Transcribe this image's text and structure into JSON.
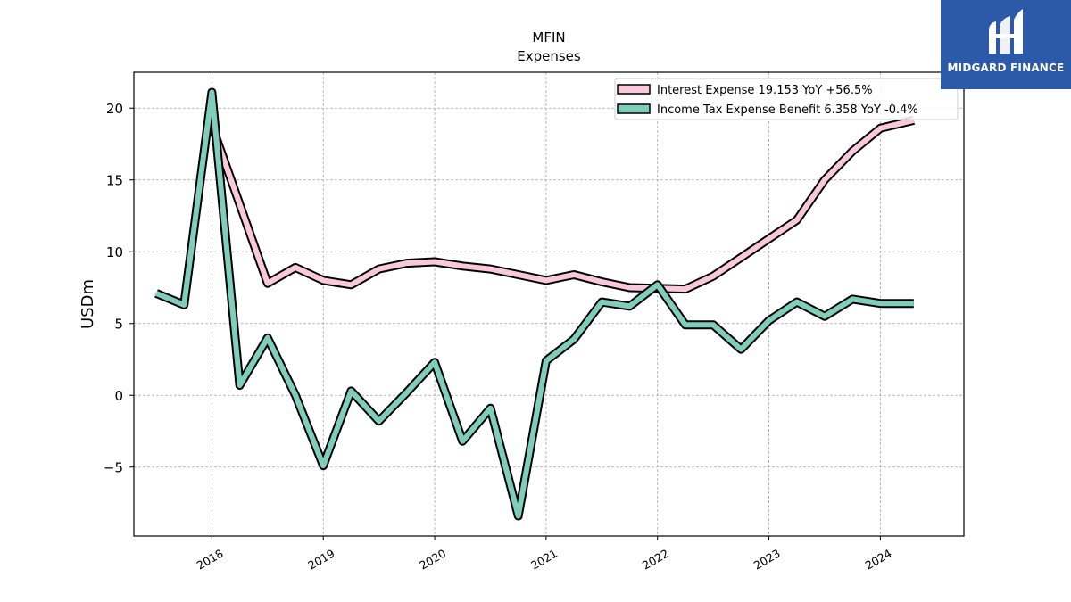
{
  "logo": {
    "text": "MIDGARD FINANCE",
    "background": "#2c5aa8",
    "icon": "midgard-logo-icon"
  },
  "chart_data": {
    "type": "line",
    "title": "MFIN",
    "subtitle": "Expenses",
    "ylabel": "USDm",
    "xlabel": "",
    "xlim": [
      2017.3,
      2024.75
    ],
    "ylim": [
      -9.8,
      22.5
    ],
    "yticks": [
      -5,
      0,
      5,
      10,
      15,
      20
    ],
    "ytick_labels": [
      "−5",
      "0",
      "5",
      "10",
      "15",
      "20"
    ],
    "xticks": [
      2018,
      2019,
      2020,
      2021,
      2022,
      2023,
      2024
    ],
    "xtick_labels": [
      "2018",
      "2019",
      "2020",
      "2021",
      "2022",
      "2023",
      "2024"
    ],
    "grid": true,
    "legend_position": "top-right",
    "series": [
      {
        "name": "Interest Expense",
        "legend_label": "Interest Expense  19.153 YoY +56.5%",
        "color": "#f9c8dc",
        "points": [
          [
            2018.0,
            18.8
          ],
          [
            2018.5,
            7.8
          ],
          [
            2018.75,
            8.9
          ],
          [
            2019.0,
            8.0
          ],
          [
            2019.25,
            7.7
          ],
          [
            2019.5,
            8.8
          ],
          [
            2019.75,
            9.2
          ],
          [
            2020.0,
            9.3
          ],
          [
            2020.25,
            9.0
          ],
          [
            2020.5,
            8.8
          ],
          [
            2020.75,
            8.4
          ],
          [
            2021.0,
            8.0
          ],
          [
            2021.25,
            8.4
          ],
          [
            2021.5,
            7.9
          ],
          [
            2021.75,
            7.5
          ],
          [
            2022.0,
            7.45
          ],
          [
            2022.25,
            7.4
          ],
          [
            2022.5,
            8.3
          ],
          [
            2022.75,
            9.6
          ],
          [
            2023.0,
            10.9
          ],
          [
            2023.25,
            12.2
          ],
          [
            2023.5,
            15.0
          ],
          [
            2023.75,
            17.0
          ],
          [
            2024.0,
            18.6
          ],
          [
            2024.3,
            19.15
          ]
        ]
      },
      {
        "name": "Income Tax Expense Benefit",
        "legend_label": "Income Tax Expense Benefit  6.358 YoY -0.4%",
        "color": "#7fcdbb",
        "points": [
          [
            2017.5,
            7.1
          ],
          [
            2017.75,
            6.3
          ],
          [
            2018.0,
            21.1
          ],
          [
            2018.25,
            0.7
          ],
          [
            2018.5,
            4.0
          ],
          [
            2018.75,
            0.0
          ],
          [
            2019.0,
            -4.9
          ],
          [
            2019.25,
            0.3
          ],
          [
            2019.5,
            -1.8
          ],
          [
            2019.75,
            0.2
          ],
          [
            2020.0,
            2.3
          ],
          [
            2020.25,
            -3.2
          ],
          [
            2020.5,
            -0.9
          ],
          [
            2020.75,
            -8.4
          ],
          [
            2021.0,
            2.4
          ],
          [
            2021.25,
            3.9
          ],
          [
            2021.5,
            6.5
          ],
          [
            2021.75,
            6.2
          ],
          [
            2022.0,
            7.7
          ],
          [
            2022.25,
            4.9
          ],
          [
            2022.5,
            4.9
          ],
          [
            2022.75,
            3.2
          ],
          [
            2023.0,
            5.2
          ],
          [
            2023.25,
            6.5
          ],
          [
            2023.5,
            5.5
          ],
          [
            2023.75,
            6.7
          ],
          [
            2024.0,
            6.4
          ],
          [
            2024.3,
            6.4
          ]
        ]
      }
    ]
  }
}
